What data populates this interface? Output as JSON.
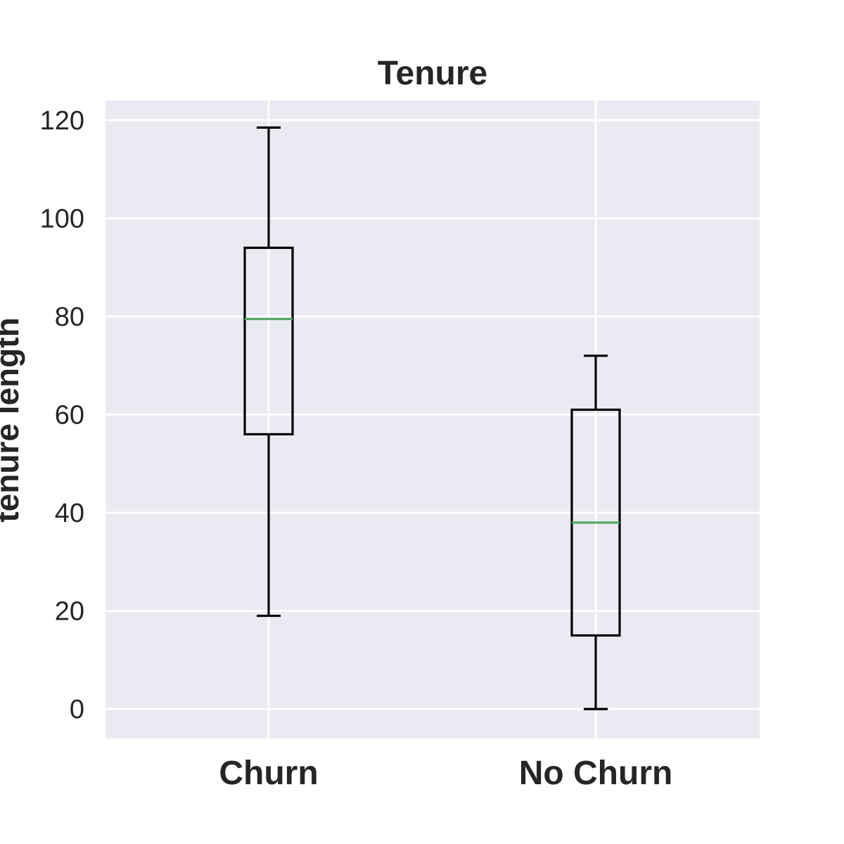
{
  "chart_data": {
    "type": "box",
    "title": "Tenure",
    "xlabel": "",
    "ylabel": "tenure length",
    "categories": [
      "Churn",
      "No Churn"
    ],
    "ylim": [
      -6,
      124
    ],
    "yticks": [
      0,
      20,
      40,
      60,
      80,
      100,
      120
    ],
    "grid": true,
    "boxes": [
      {
        "category": "Churn",
        "whisker_low": 19,
        "q1": 56,
        "median": 79.5,
        "q3": 94,
        "whisker_high": 118.5
      },
      {
        "category": "No Churn",
        "whisker_low": 0,
        "q1": 15,
        "median": 38,
        "q3": 61,
        "whisker_high": 72
      }
    ],
    "colors": {
      "background": "#eaeaf2",
      "grid": "#ffffff",
      "box": "#000000",
      "median": "#55a868",
      "text": "#262626"
    }
  }
}
